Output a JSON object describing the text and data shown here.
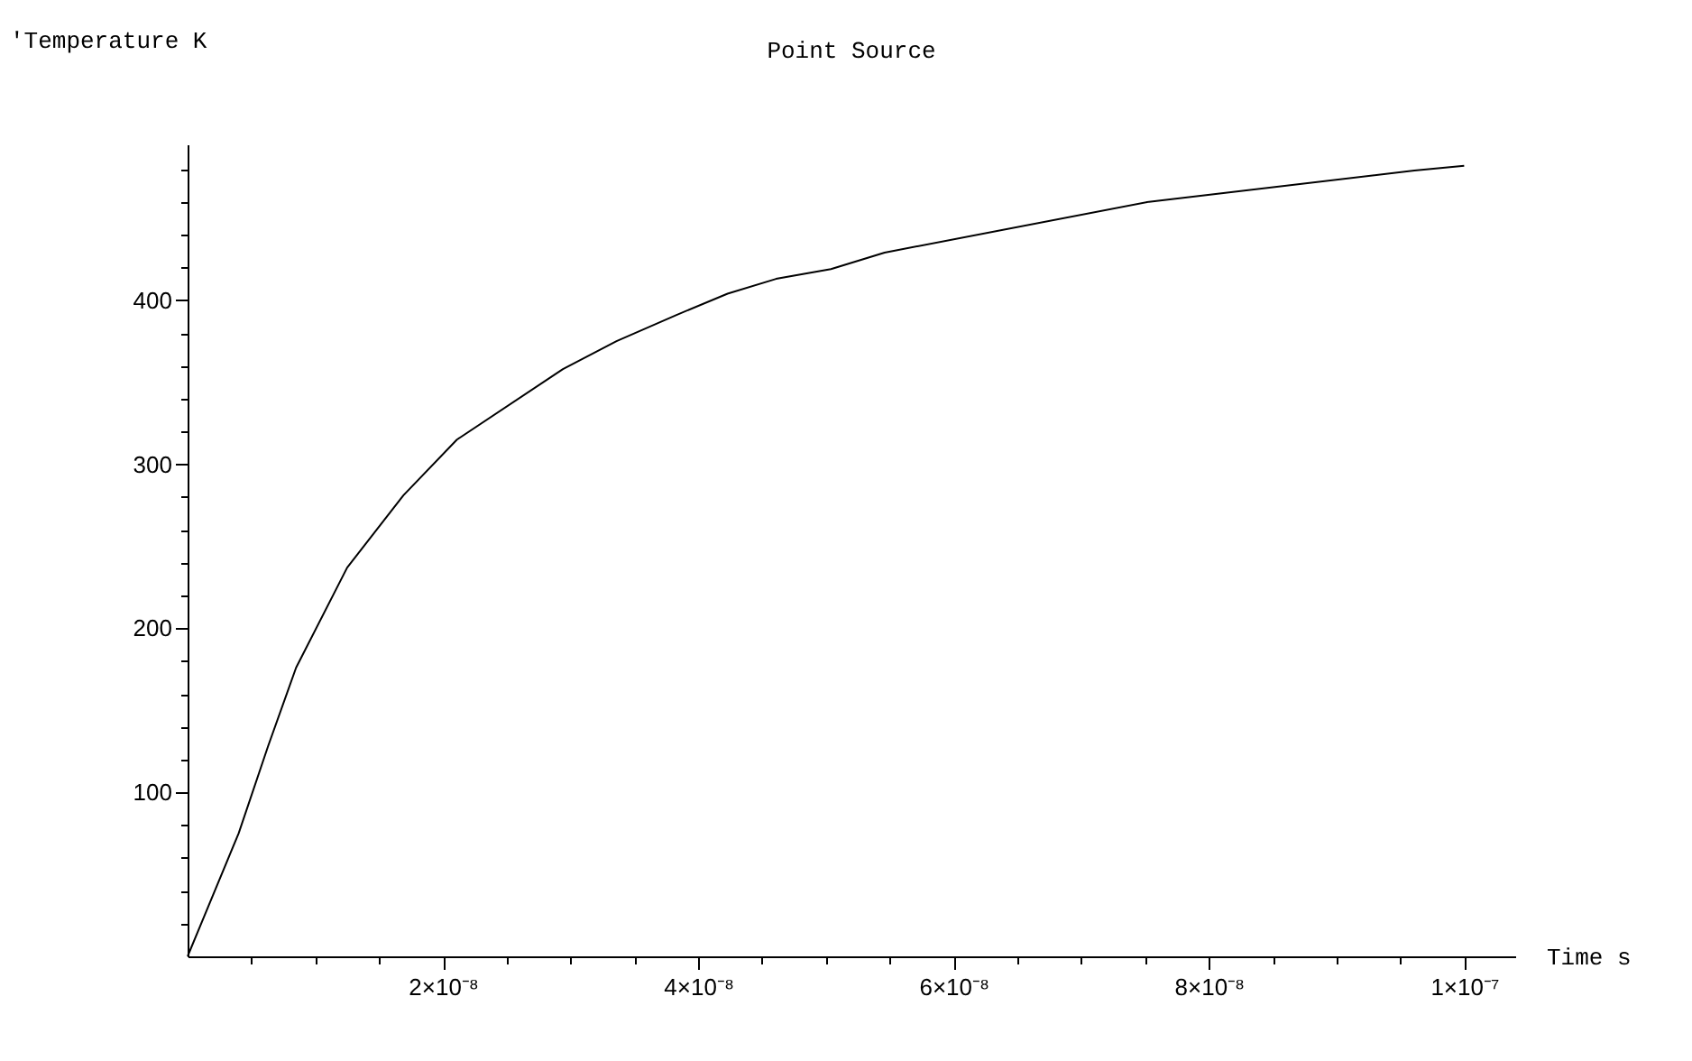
{
  "chart_data": {
    "type": "line",
    "title": "Point  Source",
    "xlabel": "Time  s",
    "ylabel": "'Temperature  K",
    "x": [
      0,
      4e-09,
      6.3e-09,
      8.5e-09,
      1.25e-08,
      1.69e-08,
      2.11e-08,
      2.94e-08,
      3.36e-08,
      3.83e-08,
      4.23e-08,
      4.61e-08,
      5.04e-08,
      5.46e-08,
      7.53e-08,
      9.61e-08,
      1e-07
    ],
    "series": [
      {
        "color": "#000000",
        "values": [
          0,
          75,
          128,
          176,
          237,
          281,
          315,
          358,
          375,
          391,
          404,
          413,
          419,
          429,
          460,
          479,
          482
        ]
      }
    ],
    "xlim": [
      0,
      1.04e-07
    ],
    "ylim": [
      0,
      495
    ],
    "xticks": [
      {
        "value": 5e-09,
        "label": null
      },
      {
        "value": 1e-08,
        "label": null
      },
      {
        "value": 1.5e-08,
        "label": null
      },
      {
        "value": 2e-08,
        "label": "2×10⁻⁸"
      },
      {
        "value": 2.5e-08,
        "label": null
      },
      {
        "value": 3e-08,
        "label": null
      },
      {
        "value": 3.5e-08,
        "label": null
      },
      {
        "value": 4e-08,
        "label": "4×10⁻⁸"
      },
      {
        "value": 4.5e-08,
        "label": null
      },
      {
        "value": 5e-08,
        "label": null
      },
      {
        "value": 5.5e-08,
        "label": null
      },
      {
        "value": 6e-08,
        "label": "6×10⁻⁸"
      },
      {
        "value": 6.5e-08,
        "label": null
      },
      {
        "value": 7e-08,
        "label": null
      },
      {
        "value": 7.5e-08,
        "label": null
      },
      {
        "value": 8e-08,
        "label": "8×10⁻⁸"
      },
      {
        "value": 8.5e-08,
        "label": null
      },
      {
        "value": 9e-08,
        "label": null
      },
      {
        "value": 9.5e-08,
        "label": null
      },
      {
        "value": 1e-07,
        "label": "1×10⁻⁷"
      }
    ],
    "yticks": [
      {
        "value": 20,
        "label": null
      },
      {
        "value": 40,
        "label": null
      },
      {
        "value": 60,
        "label": null
      },
      {
        "value": 80,
        "label": null
      },
      100,
      {
        "value": 120,
        "label": null
      },
      {
        "value": 140,
        "label": null
      },
      {
        "value": 160,
        "label": null
      },
      {
        "value": 180,
        "label": null
      },
      200,
      {
        "value": 220,
        "label": null
      },
      {
        "value": 240,
        "label": null
      },
      {
        "value": 260,
        "label": null
      },
      {
        "value": 280,
        "label": null
      },
      300,
      {
        "value": 320,
        "label": null
      },
      {
        "value": 340,
        "label": null
      },
      {
        "value": 360,
        "label": null
      },
      {
        "value": 380,
        "label": null
      },
      400,
      {
        "value": 420,
        "label": null
      },
      {
        "value": 440,
        "label": null
      },
      {
        "value": 460,
        "label": null
      },
      {
        "value": 480,
        "label": null
      }
    ],
    "grid": false
  }
}
